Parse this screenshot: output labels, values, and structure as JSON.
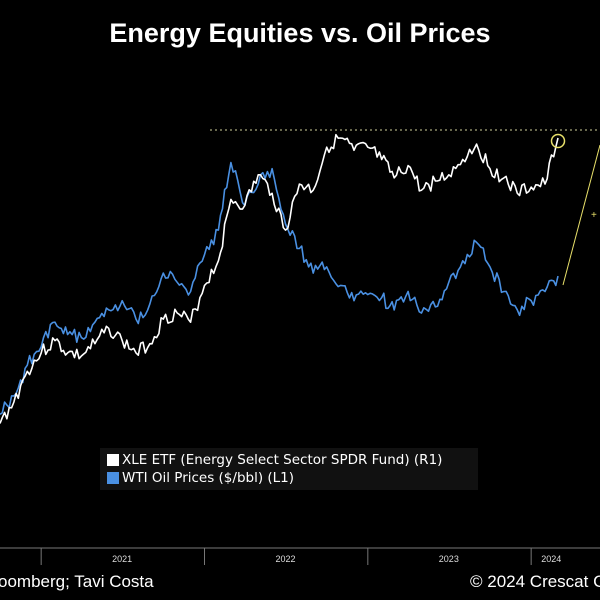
{
  "chart_data": {
    "type": "line",
    "title": "Energy Equities vs. Oil Prices",
    "x_labels": [
      "2021",
      "2022",
      "2023",
      "2024"
    ],
    "series": [
      {
        "name": "XLE ETF (Energy Select Sector SPDR Fund) (R1)",
        "axis": "right",
        "color": "#ffffff",
        "points": [
          [
            "2020-10-01",
            0.07
          ],
          [
            "2020-11-01",
            0.14
          ],
          [
            "2020-12-01",
            0.24
          ],
          [
            "2021-01-01",
            0.3
          ],
          [
            "2021-02-01",
            0.34
          ],
          [
            "2021-03-01",
            0.3
          ],
          [
            "2021-04-01",
            0.29
          ],
          [
            "2021-05-01",
            0.33
          ],
          [
            "2021-06-01",
            0.38
          ],
          [
            "2021-07-01",
            0.34
          ],
          [
            "2021-08-01",
            0.3
          ],
          [
            "2021-09-01",
            0.33
          ],
          [
            "2021-10-01",
            0.41
          ],
          [
            "2021-11-01",
            0.43
          ],
          [
            "2021-12-01",
            0.4
          ],
          [
            "2022-01-01",
            0.52
          ],
          [
            "2022-02-01",
            0.6
          ],
          [
            "2022-03-01",
            0.8
          ],
          [
            "2022-04-01",
            0.78
          ],
          [
            "2022-05-01",
            0.88
          ],
          [
            "2022-06-01",
            0.82
          ],
          [
            "2022-07-01",
            0.7
          ],
          [
            "2022-08-01",
            0.85
          ],
          [
            "2022-09-01",
            0.83
          ],
          [
            "2022-10-01",
            0.97
          ],
          [
            "2022-11-01",
            1.0
          ],
          [
            "2022-12-01",
            0.96
          ],
          [
            "2023-01-01",
            0.97
          ],
          [
            "2023-02-01",
            0.93
          ],
          [
            "2023-03-01",
            0.87
          ],
          [
            "2023-04-01",
            0.91
          ],
          [
            "2023-05-01",
            0.83
          ],
          [
            "2023-06-01",
            0.86
          ],
          [
            "2023-07-01",
            0.88
          ],
          [
            "2023-08-01",
            0.93
          ],
          [
            "2023-09-01",
            0.98
          ],
          [
            "2023-10-01",
            0.9
          ],
          [
            "2023-11-01",
            0.87
          ],
          [
            "2023-12-01",
            0.82
          ],
          [
            "2024-01-01",
            0.84
          ],
          [
            "2024-02-01",
            0.85
          ],
          [
            "2024-03-01",
            1.0
          ]
        ]
      },
      {
        "name": "WTI Oil Prices ($/bbl) (L1)",
        "axis": "left",
        "color": "#4a90e2",
        "points": [
          [
            "2020-10-01",
            0.1
          ],
          [
            "2020-11-01",
            0.16
          ],
          [
            "2020-12-01",
            0.26
          ],
          [
            "2021-01-01",
            0.32
          ],
          [
            "2021-02-01",
            0.4
          ],
          [
            "2021-03-01",
            0.36
          ],
          [
            "2021-04-01",
            0.35
          ],
          [
            "2021-05-01",
            0.4
          ],
          [
            "2021-06-01",
            0.44
          ],
          [
            "2021-07-01",
            0.47
          ],
          [
            "2021-08-01",
            0.41
          ],
          [
            "2021-09-01",
            0.46
          ],
          [
            "2021-10-01",
            0.56
          ],
          [
            "2021-11-01",
            0.53
          ],
          [
            "2021-12-01",
            0.5
          ],
          [
            "2022-01-01",
            0.62
          ],
          [
            "2022-02-01",
            0.7
          ],
          [
            "2022-03-01",
            0.92
          ],
          [
            "2022-04-01",
            0.78
          ],
          [
            "2022-05-01",
            0.85
          ],
          [
            "2022-06-01",
            0.9
          ],
          [
            "2022-07-01",
            0.72
          ],
          [
            "2022-08-01",
            0.64
          ],
          [
            "2022-09-01",
            0.56
          ],
          [
            "2022-10-01",
            0.58
          ],
          [
            "2022-11-01",
            0.52
          ],
          [
            "2022-12-01",
            0.47
          ],
          [
            "2023-01-01",
            0.49
          ],
          [
            "2023-02-01",
            0.48
          ],
          [
            "2023-03-01",
            0.44
          ],
          [
            "2023-04-01",
            0.5
          ],
          [
            "2023-05-01",
            0.43
          ],
          [
            "2023-06-01",
            0.45
          ],
          [
            "2023-07-01",
            0.53
          ],
          [
            "2023-08-01",
            0.6
          ],
          [
            "2023-09-01",
            0.66
          ],
          [
            "2023-10-01",
            0.58
          ],
          [
            "2023-11-01",
            0.5
          ],
          [
            "2023-12-01",
            0.44
          ],
          [
            "2024-01-01",
            0.47
          ],
          [
            "2024-02-01",
            0.5
          ],
          [
            "2024-03-01",
            0.55
          ]
        ]
      }
    ],
    "annotations": {
      "dotted_line": "previous high",
      "marker": "circle at latest XLE value"
    },
    "grid": false,
    "legend_position": "bottom-left"
  },
  "legend": {
    "xle_label": "XLE ETF (Energy Select Sector SPDR Fund) (R1)",
    "wti_label": "WTI Oil Prices ($/bbl) (L1)"
  },
  "footer": {
    "source": "oomberg; Tavi Costa",
    "copyright": "© 2024 Crescat C"
  },
  "colors": {
    "background": "#000000",
    "xle": "#ffffff",
    "wti": "#4a90e2",
    "annotation": "#e8e06a"
  }
}
